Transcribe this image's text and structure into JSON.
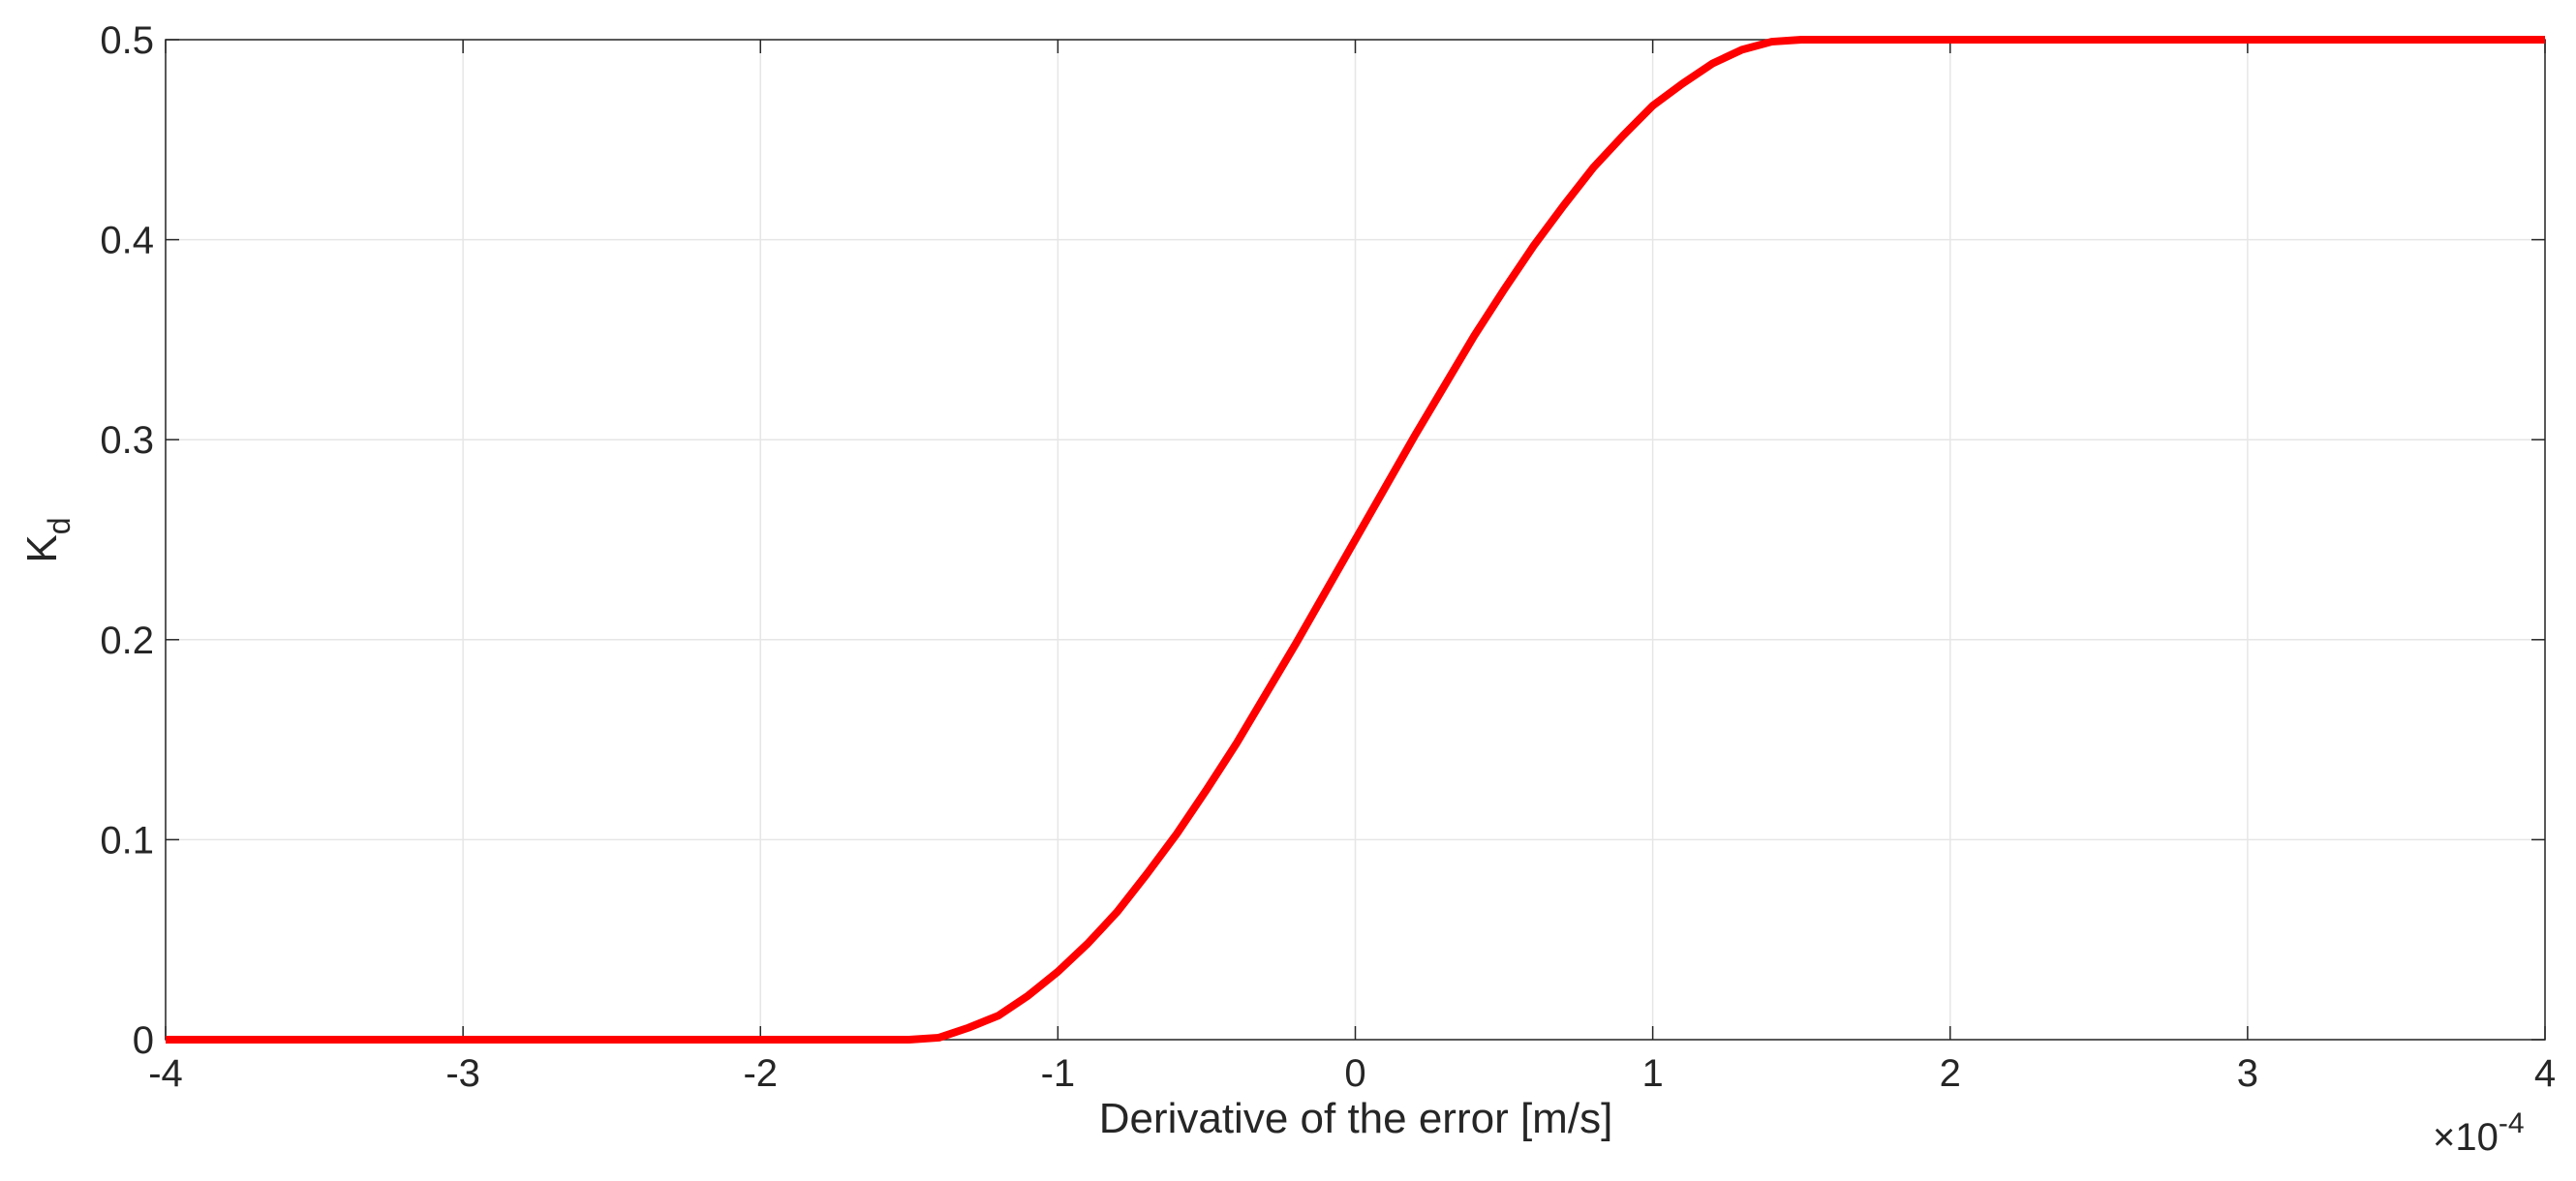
{
  "chart_data": {
    "type": "line",
    "xlabel": "Derivative of the error [m/s]",
    "ylabel": "K",
    "ylabel_subscript": "d",
    "x_multiplier": "×10",
    "x_multiplier_exponent": "-4",
    "x": [
      -4,
      -3,
      -2,
      -1.5,
      -1.4,
      -1.3,
      -1.2,
      -1.1,
      -1.0,
      -0.9,
      -0.8,
      -0.7,
      -0.6,
      -0.5,
      -0.4,
      -0.3,
      -0.2,
      -0.1,
      0,
      0.1,
      0.2,
      0.3,
      0.4,
      0.5,
      0.6,
      0.7,
      0.8,
      0.9,
      1.0,
      1.1,
      1.2,
      1.3,
      1.4,
      1.5,
      2,
      3,
      4
    ],
    "series": [
      {
        "color": "#ff0000",
        "values": [
          0,
          0,
          0,
          0,
          0.001,
          0.006,
          0.012,
          0.022,
          0.034,
          0.048,
          0.064,
          0.083,
          0.103,
          0.125,
          0.148,
          0.173,
          0.198,
          0.224,
          0.25,
          0.276,
          0.302,
          0.327,
          0.352,
          0.375,
          0.397,
          0.417,
          0.436,
          0.452,
          0.467,
          0.478,
          0.488,
          0.495,
          0.499,
          0.5,
          0.5,
          0.5,
          0.5
        ]
      }
    ],
    "xlim": [
      -4,
      4
    ],
    "ylim": [
      0,
      0.5
    ],
    "xticks": [
      -4,
      -3,
      -2,
      -1,
      0,
      1,
      2,
      3,
      4
    ],
    "yticks": [
      0,
      0.1,
      0.2,
      0.3,
      0.4,
      0.5
    ],
    "grid": true
  }
}
